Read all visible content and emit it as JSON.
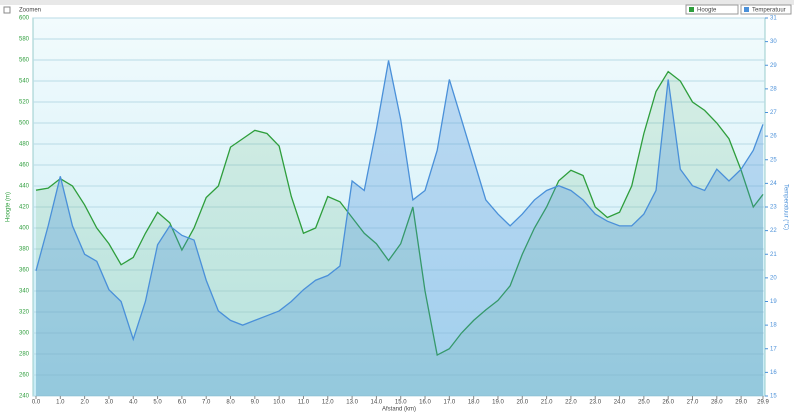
{
  "toolbar": {
    "zoom": "Zoomen",
    "select1": "Hoogte",
    "select2": "Temperatuur"
  },
  "chart_data": {
    "type": "area",
    "x_label": "Afstand (km)",
    "y_label": "Hoogte (m)",
    "y2_label": "Temperatuur (°C)",
    "x": [
      0,
      0.5,
      1,
      1.5,
      2,
      2.5,
      3,
      3.5,
      4,
      4.5,
      5,
      5.5,
      6,
      6.5,
      7,
      7.5,
      8,
      8.5,
      9,
      9.5,
      10,
      10.5,
      11,
      11.5,
      12,
      12.5,
      13,
      13.5,
      14,
      14.5,
      15,
      15.5,
      16,
      16.5,
      17,
      17.5,
      18,
      18.5,
      19,
      19.5,
      20,
      20.5,
      21,
      21.5,
      22,
      22.5,
      23,
      23.5,
      24,
      24.5,
      25,
      25.5,
      26,
      26.5,
      27,
      27.5,
      28,
      28.5,
      29,
      29.5,
      29.9
    ],
    "series": [
      {
        "name": "Hoogte",
        "color": "#2e9e3c",
        "axis": "y",
        "values": [
          436,
          438,
          447,
          440,
          422,
          400,
          385,
          365,
          372,
          395,
          415,
          405,
          379,
          400,
          429,
          440,
          477,
          485,
          493,
          490,
          478,
          430,
          395,
          400,
          430,
          425,
          410,
          395,
          385,
          369,
          385,
          420,
          340,
          279,
          285,
          300,
          312,
          322,
          331,
          345,
          375,
          400,
          420,
          445,
          455,
          450,
          420,
          410,
          415,
          440,
          490,
          530,
          549,
          540,
          520,
          512,
          500,
          485,
          455,
          420,
          432
        ]
      },
      {
        "name": "Temperatuur",
        "color": "#4a90d9",
        "axis": "y2",
        "values": [
          20.3,
          22.2,
          24.3,
          22.2,
          21,
          20.7,
          19.5,
          19,
          17.4,
          19,
          21.4,
          22.2,
          21.8,
          21.6,
          19.9,
          18.6,
          18.2,
          18,
          18.2,
          18.4,
          18.6,
          19,
          19.5,
          19.9,
          20.1,
          20.5,
          24.1,
          23.7,
          26.3,
          29.2,
          26.7,
          23.3,
          23.7,
          25.4,
          28.4,
          26.7,
          25,
          23.3,
          22.7,
          22.2,
          22.7,
          23.3,
          23.7,
          23.9,
          23.7,
          23.3,
          22.7,
          22.4,
          22.2,
          22.2,
          22.7,
          23.7,
          28.4,
          24.6,
          23.9,
          23.7,
          24.6,
          24.1,
          24.6,
          25.4,
          26.5
        ]
      }
    ],
    "xlim": [
      0,
      29.9
    ],
    "xticks": [
      {
        "value": 0,
        "label": "0.0"
      },
      {
        "value": 1,
        "label": "1.0"
      },
      {
        "value": 2,
        "label": "2.0"
      },
      {
        "value": 3,
        "label": "3.0"
      },
      {
        "value": 4,
        "label": "4.0"
      },
      {
        "value": 5,
        "label": "5.0"
      },
      {
        "value": 6,
        "label": "6.0"
      },
      {
        "value": 7,
        "label": "7.0"
      },
      {
        "value": 8,
        "label": "8.0"
      },
      {
        "value": 9,
        "label": "9.0"
      },
      {
        "value": 10,
        "label": "10.0"
      },
      {
        "value": 11,
        "label": "11.0"
      },
      {
        "value": 12,
        "label": "12.0"
      },
      {
        "value": 13,
        "label": "13.0"
      },
      {
        "value": 14,
        "label": "14.0"
      },
      {
        "value": 15,
        "label": "15.0"
      },
      {
        "value": 16,
        "label": "16.0"
      },
      {
        "value": 17,
        "label": "17.0"
      },
      {
        "value": 18,
        "label": "18.0"
      },
      {
        "value": 19,
        "label": "19.0"
      },
      {
        "value": 20,
        "label": "20.0"
      },
      {
        "value": 21,
        "label": "21.0"
      },
      {
        "value": 22,
        "label": "22.0"
      },
      {
        "value": 23,
        "label": "23.0"
      },
      {
        "value": 24,
        "label": "24.0"
      },
      {
        "value": 25,
        "label": "25.0"
      },
      {
        "value": 26,
        "label": "26.0"
      },
      {
        "value": 27,
        "label": "27.0"
      },
      {
        "value": 28,
        "label": "28.0"
      },
      {
        "value": 29,
        "label": "29.0"
      },
      29.9
    ],
    "ylim": [
      240,
      600
    ],
    "yticks": [
      240,
      260,
      280,
      300,
      320,
      340,
      360,
      380,
      400,
      420,
      440,
      460,
      480,
      500,
      520,
      540,
      560,
      580,
      600
    ],
    "y2lim": [
      15,
      31
    ],
    "y2ticks": [
      15,
      16,
      17,
      18,
      19,
      20,
      21,
      22,
      23,
      24,
      25,
      26,
      27,
      28,
      29,
      30,
      31
    ],
    "grid": true
  }
}
